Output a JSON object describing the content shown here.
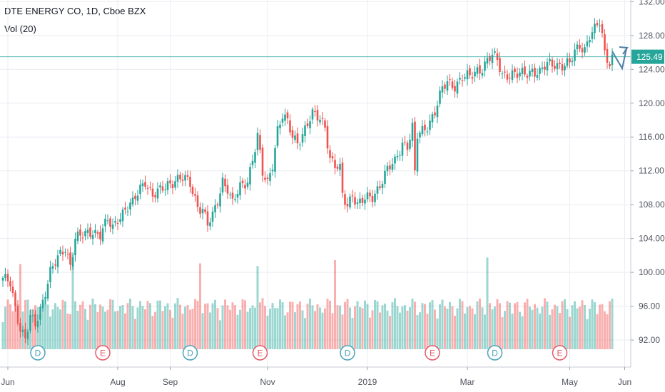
{
  "chart_data": {
    "type": "candlestick",
    "title": "DTE ENERGY CO, 1D, Cboe BZX",
    "indicator": "Vol (20)",
    "ylim": [
      88.8,
      132.2
    ],
    "price_ticks": [
      {
        "value": 132,
        "label": "132.00"
      },
      {
        "value": 128,
        "label": "128.00"
      },
      {
        "value": 124,
        "label": "124.00"
      },
      {
        "value": 120,
        "label": "120.00"
      },
      {
        "value": 116,
        "label": "116.00"
      },
      {
        "value": 112,
        "label": "112.00"
      },
      {
        "value": 108,
        "label": "108.00"
      },
      {
        "value": 104,
        "label": "104.00"
      },
      {
        "value": 100,
        "label": "100.00"
      },
      {
        "value": 96,
        "label": "96.00"
      },
      {
        "value": 92,
        "label": "92.00"
      }
    ],
    "time_ticks": [
      {
        "index": 2,
        "label": "Jun"
      },
      {
        "index": 46,
        "label": "Aug"
      },
      {
        "index": 67,
        "label": "Sep"
      },
      {
        "index": 106,
        "label": "Nov"
      },
      {
        "index": 146,
        "label": "2019"
      },
      {
        "index": 186,
        "label": "Mar"
      },
      {
        "index": 227,
        "label": "May"
      },
      {
        "index": 249,
        "label": "Jun"
      }
    ],
    "last_price": {
      "value": 125.49,
      "label": "125.49"
    },
    "event_markers": [
      {
        "index": 14,
        "label": "D",
        "kind": "dividend"
      },
      {
        "index": 40,
        "label": "E",
        "kind": "earnings"
      },
      {
        "index": 75,
        "label": "D",
        "kind": "dividend"
      },
      {
        "index": 103,
        "label": "E",
        "kind": "earnings"
      },
      {
        "index": 138,
        "label": "D",
        "kind": "dividend"
      },
      {
        "index": 172,
        "label": "E",
        "kind": "earnings"
      },
      {
        "index": 197,
        "label": "D",
        "kind": "dividend"
      },
      {
        "index": 223,
        "label": "E",
        "kind": "earnings"
      }
    ],
    "anchors": [
      [
        0,
        99.0
      ],
      [
        3,
        98.8
      ],
      [
        5,
        96.0
      ],
      [
        7,
        93.5
      ],
      [
        9,
        92.0
      ],
      [
        11,
        94.5
      ],
      [
        13,
        93.8
      ],
      [
        16,
        96.8
      ],
      [
        19,
        100.0
      ],
      [
        22,
        101.5
      ],
      [
        25,
        103.0
      ],
      [
        27,
        101.0
      ],
      [
        29,
        104.0
      ],
      [
        32,
        104.2
      ],
      [
        36,
        105.0
      ],
      [
        39,
        104.5
      ],
      [
        42,
        106.0
      ],
      [
        44,
        105.2
      ],
      [
        46,
        106.5
      ],
      [
        49,
        107.5
      ],
      [
        52,
        108.0
      ],
      [
        55,
        110.0
      ],
      [
        57,
        111.0
      ],
      [
        60,
        109.0
      ],
      [
        63,
        109.5
      ],
      [
        66,
        110.5
      ],
      [
        69,
        111.0
      ],
      [
        72,
        111.0
      ],
      [
        75,
        110.5
      ],
      [
        78,
        108.0
      ],
      [
        80,
        107.5
      ],
      [
        82,
        105.5
      ],
      [
        84,
        106.5
      ],
      [
        86,
        108.5
      ],
      [
        88,
        111.0
      ],
      [
        90,
        110.0
      ],
      [
        92,
        108.0
      ],
      [
        95,
        110.0
      ],
      [
        98,
        111.0
      ],
      [
        100,
        113.5
      ],
      [
        102,
        116.0
      ],
      [
        104,
        111.5
      ],
      [
        106,
        110.5
      ],
      [
        108,
        113.0
      ],
      [
        110,
        117.0
      ],
      [
        112,
        118.5
      ],
      [
        114,
        117.5
      ],
      [
        116,
        116.0
      ],
      [
        118,
        115.5
      ],
      [
        121,
        117.0
      ],
      [
        124,
        118.5
      ],
      [
        127,
        118.2
      ],
      [
        129,
        117.5
      ],
      [
        131,
        113.5
      ],
      [
        133,
        112.5
      ],
      [
        135,
        112.0
      ],
      [
        136,
        109.0
      ],
      [
        138,
        108.0
      ],
      [
        140,
        109.5
      ],
      [
        142,
        108.0
      ],
      [
        145,
        108.5
      ],
      [
        148,
        109.0
      ],
      [
        151,
        110.5
      ],
      [
        154,
        112.0
      ],
      [
        157,
        113.0
      ],
      [
        160,
        115.5
      ],
      [
        162,
        115.0
      ],
      [
        164,
        117.0
      ],
      [
        165,
        111.5
      ],
      [
        166,
        116.0
      ],
      [
        170,
        117.5
      ],
      [
        173,
        119.0
      ],
      [
        176,
        121.5
      ],
      [
        178,
        122.5
      ],
      [
        181,
        122.2
      ],
      [
        184,
        123.0
      ],
      [
        187,
        123.0
      ],
      [
        190,
        124.0
      ],
      [
        192,
        124.3
      ],
      [
        194,
        125.0
      ],
      [
        196,
        125.5
      ],
      [
        198,
        125.0
      ],
      [
        200,
        123.5
      ],
      [
        203,
        123.5
      ],
      [
        206,
        123.2
      ],
      [
        209,
        123.5
      ],
      [
        212,
        124.0
      ],
      [
        215,
        123.5
      ],
      [
        218,
        124.5
      ],
      [
        221,
        124.8
      ],
      [
        224,
        124.5
      ],
      [
        227,
        124.5
      ],
      [
        229,
        126.0
      ],
      [
        231,
        127.0
      ],
      [
        233,
        126.5
      ],
      [
        235,
        128.0
      ],
      [
        237,
        128.5
      ],
      [
        239,
        129.5
      ],
      [
        240,
        128.0
      ],
      [
        241,
        126.0
      ],
      [
        243,
        125.0
      ],
      [
        244,
        125.5
      ]
    ],
    "volume_notes": "Volume histogram per bar; teal for up days, red for down days"
  }
}
